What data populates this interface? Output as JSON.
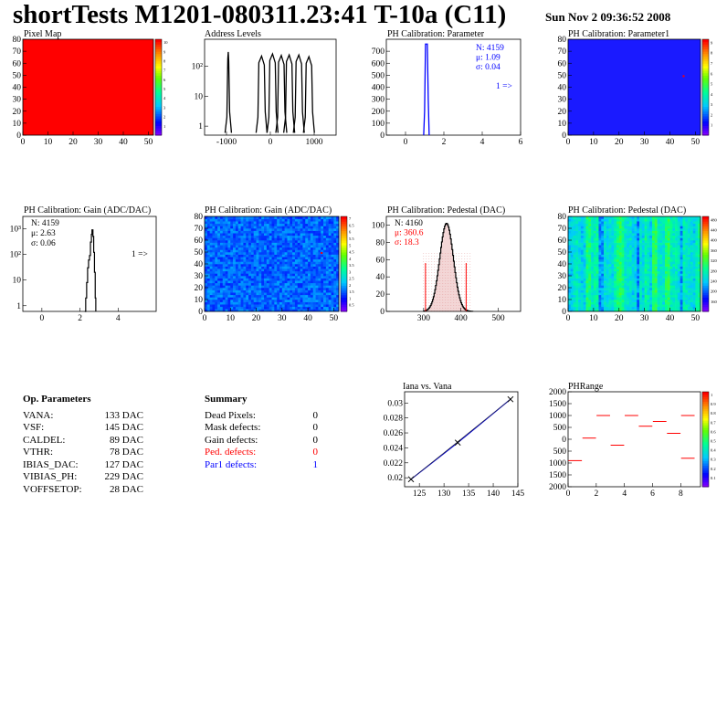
{
  "header": {
    "title": "shortTests M1201-080311.23:41 T-10a (C11)",
    "date": "Sun Nov  2 09:36:52 2008"
  },
  "colors": {
    "stats_blue": "#0000ff",
    "stats_red": "#ff0000",
    "hist_black": "#000000",
    "fit_blue": "#0000cc",
    "map_red": "#ff0000",
    "map_blue": "#1a1aff"
  },
  "panels": {
    "pixel_map": {
      "title": "Pixel Map"
    },
    "address_levels": {
      "title": "Address Levels"
    },
    "ph_param": {
      "title": "PH Calibration: Parameter",
      "stats": [
        "N: 4159",
        "μ: 1.09",
        "σ: 0.04"
      ],
      "overflow": "1 =>"
    },
    "ph_param1": {
      "title": "PH Calibration: Parameter1"
    },
    "gain_hist": {
      "title": "PH Calibration: Gain (ADC/DAC)",
      "stats": [
        "N: 4159",
        "μ: 2.63",
        "σ: 0.06"
      ],
      "overflow": "1 =>"
    },
    "gain_map": {
      "title": "PH Calibration: Gain (ADC/DAC)"
    },
    "ped_hist": {
      "title": "PH Calibration: Pedestal (DAC)",
      "stats": [
        "N: 4160",
        "μ: 360.6",
        "σ: 18.3"
      ]
    },
    "ped_map": {
      "title": "PH Calibration: Pedestal (DAC)"
    },
    "iana": {
      "title": "Iana vs. Vana"
    },
    "phrange": {
      "title": "PHRange"
    }
  },
  "op_parameters": {
    "title": "Op. Parameters",
    "rows": [
      {
        "name": "VANA:",
        "value": "133 DAC"
      },
      {
        "name": "VSF:",
        "value": "145 DAC"
      },
      {
        "name": "CALDEL:",
        "value": "89 DAC"
      },
      {
        "name": "VTHR:",
        "value": "78 DAC"
      },
      {
        "name": "IBIAS_DAC:",
        "value": "127 DAC"
      },
      {
        "name": "VIBIAS_PH:",
        "value": "229 DAC"
      },
      {
        "name": "VOFFSETOP:",
        "value": "28 DAC"
      }
    ]
  },
  "summary": {
    "title": "Summary",
    "rows": [
      {
        "name": "Dead Pixels:",
        "value": "0",
        "color": "#000000"
      },
      {
        "name": "Mask defects:",
        "value": "0",
        "color": "#000000"
      },
      {
        "name": "Gain defects:",
        "value": "0",
        "color": "#000000"
      },
      {
        "name": "Ped. defects:",
        "value": "0",
        "color": "#ff0000"
      },
      {
        "name": "Par1 defects:",
        "value": "1",
        "color": "#0000ff"
      }
    ]
  },
  "chart_data": [
    {
      "id": "pixel_map",
      "type": "heatmap",
      "title": "Pixel Map",
      "xlim": [
        0,
        52
      ],
      "ylim": [
        0,
        80
      ],
      "xticks": [
        0,
        10,
        20,
        30,
        40,
        50
      ],
      "yticks": [
        0,
        10,
        20,
        30,
        40,
        50,
        60,
        70,
        80
      ],
      "palette_ticks": [
        "1",
        "2",
        "3",
        "4",
        "5",
        "6",
        "7",
        "8",
        "9",
        "10"
      ],
      "fill": "uniform maximum (red)"
    },
    {
      "id": "address_levels",
      "type": "line",
      "title": "Address Levels",
      "xlim": [
        -1500,
        1500
      ],
      "ylog": true,
      "xticks": [
        "-1000",
        "0",
        "1000"
      ],
      "yticks": [
        {
          "v": 1,
          "label": "1"
        },
        {
          "v": 10,
          "label": "10"
        },
        {
          "v": 100,
          "label": "10²"
        }
      ],
      "peaks": [
        {
          "x": -960,
          "y": 300
        },
        {
          "x": -200,
          "y": 220
        },
        {
          "x": 50,
          "y": 260
        },
        {
          "x": 250,
          "y": 230
        },
        {
          "x": 430,
          "y": 240
        },
        {
          "x": 650,
          "y": 240
        },
        {
          "x": 880,
          "y": 210
        }
      ]
    },
    {
      "id": "ph_param",
      "type": "line",
      "title": "PH Calibration: Parameter",
      "xlim": [
        -1,
        6
      ],
      "ylim": [
        0,
        800
      ],
      "xticks": [
        "0",
        "2",
        "4",
        "6"
      ],
      "yticks": [
        "0",
        "100",
        "200",
        "300",
        "400",
        "500",
        "600",
        "700"
      ],
      "peak": {
        "x": 1.09,
        "y": 760
      }
    },
    {
      "id": "ph_param1",
      "type": "heatmap",
      "title": "PH Calibration: Parameter1",
      "xlim": [
        0,
        52
      ],
      "ylim": [
        0,
        80
      ],
      "xticks": [
        0,
        10,
        20,
        30,
        40,
        50
      ],
      "yticks": [
        0,
        10,
        20,
        30,
        40,
        50,
        60,
        70,
        80
      ],
      "palette_ticks": [
        "1",
        "2",
        "3",
        "4",
        "5",
        "6",
        "7",
        "8",
        "9"
      ]
    },
    {
      "id": "gain_hist",
      "type": "line",
      "title": "PH Calibration: Gain (ADC/DAC)",
      "xlim": [
        -1,
        6
      ],
      "ylog": true,
      "xticks": [
        "0",
        "2",
        "4"
      ],
      "yticks": [
        {
          "v": 1,
          "label": "1"
        },
        {
          "v": 10,
          "label": "10"
        },
        {
          "v": 100,
          "label": "10²"
        },
        {
          "v": 1000,
          "label": "10³"
        }
      ],
      "peak": {
        "x": 2.63,
        "y": 900
      }
    },
    {
      "id": "gain_map",
      "type": "heatmap",
      "title": "PH Calibration: Gain (ADC/DAC)",
      "xlim": [
        0,
        52
      ],
      "ylim": [
        0,
        80
      ],
      "xticks": [
        0,
        10,
        20,
        30,
        40,
        50
      ],
      "yticks": [
        0,
        10,
        20,
        30,
        40,
        50,
        60,
        70,
        80
      ],
      "palette_ticks": [
        "0.5",
        "1",
        "1.5",
        "2",
        "2.5",
        "3",
        "3.5",
        "4",
        "4.5",
        "5",
        "5.5",
        "6",
        "6.5",
        "7"
      ]
    },
    {
      "id": "ped_hist",
      "type": "bar",
      "title": "PH Calibration: Pedestal (DAC)",
      "xlim": [
        200,
        560
      ],
      "ylim": [
        0,
        110
      ],
      "xticks": [
        "300",
        "400",
        "500"
      ],
      "yticks": [
        "0",
        "20",
        "40",
        "60",
        "80",
        "100"
      ],
      "mean": 360.6,
      "sigma": 18.3,
      "peak": 102,
      "cut_lines": [
        305,
        414
      ]
    },
    {
      "id": "ped_map",
      "type": "heatmap",
      "title": "PH Calibration: Pedestal (DAC)",
      "xlim": [
        0,
        52
      ],
      "ylim": [
        0,
        80
      ],
      "xticks": [
        0,
        10,
        20,
        30,
        40,
        50
      ],
      "yticks": [
        0,
        10,
        20,
        30,
        40,
        50,
        60,
        70,
        80
      ],
      "palette_ticks": [
        "160",
        "200",
        "240",
        "280",
        "320",
        "360",
        "400",
        "440",
        "480"
      ]
    },
    {
      "id": "iana",
      "type": "line",
      "title": "Iana vs. Vana",
      "xlim": [
        122,
        145
      ],
      "ylim": [
        0.0188,
        0.0315
      ],
      "xticks": [
        "125",
        "130",
        "135",
        "140",
        "145"
      ],
      "yticks": [
        "0.02",
        "0.022",
        "0.024",
        "0.026",
        "0.028",
        "0.03"
      ],
      "points": [
        {
          "x": 123.3,
          "y": 0.0198
        },
        {
          "x": 132.8,
          "y": 0.0247
        },
        {
          "x": 143.5,
          "y": 0.0305
        }
      ]
    },
    {
      "id": "phrange",
      "type": "scatter",
      "title": "PHRange",
      "xlim": [
        0,
        9.4
      ],
      "ylim": [
        -2000,
        2000
      ],
      "xticks": [
        "0",
        "2",
        "4",
        "6",
        "8"
      ],
      "yticks": [
        "2000",
        "1500",
        "1000",
        "500",
        "0",
        "500",
        "1000",
        "1500",
        "2000"
      ],
      "palette_ticks": [
        "0.1",
        "0.2",
        "0.3",
        "0.4",
        "0.5",
        "0.6",
        "0.7",
        "0.8",
        "0.9",
        "1"
      ],
      "segments": [
        {
          "x": 0.5,
          "y": -900
        },
        {
          "x": 1.5,
          "y": 50
        },
        {
          "x": 2.5,
          "y": 1000
        },
        {
          "x": 3.5,
          "y": -250
        },
        {
          "x": 4.5,
          "y": 1000
        },
        {
          "x": 5.5,
          "y": 550
        },
        {
          "x": 6.5,
          "y": 750
        },
        {
          "x": 7.5,
          "y": 250
        },
        {
          "x": 8.5,
          "y": 1000
        },
        {
          "x": 8.5,
          "y": -800
        }
      ]
    }
  ]
}
